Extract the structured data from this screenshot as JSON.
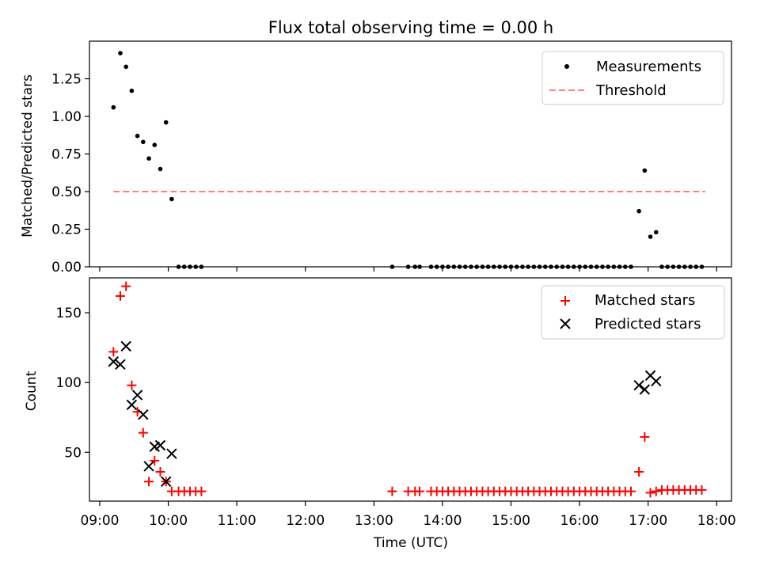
{
  "chart_data": [
    {
      "type": "scatter",
      "title": "Flux total observing time = 0.00 h",
      "xlabel": "",
      "ylabel": "Matched/Predicted stars",
      "xlim": [
        "08:51",
        "18:13"
      ],
      "ylim": [
        0.0,
        1.5
      ],
      "yticks": [
        0.0,
        0.25,
        0.5,
        0.75,
        1.0,
        1.25
      ],
      "ytick_labels": [
        "0.00",
        "0.25",
        "0.50",
        "0.75",
        "1.00",
        "1.25"
      ],
      "legend": {
        "placement": "top-right",
        "entries": [
          "Measurements",
          "Threshold"
        ]
      },
      "threshold": {
        "name": "Threshold",
        "y": 0.5,
        "x_start": "09:12",
        "x_end": "17:50",
        "color": "#ff7f7f"
      },
      "series": [
        {
          "name": "Measurements",
          "color": "#000000",
          "marker": "dot",
          "points": [
            [
              "09:12",
              1.06
            ],
            [
              "09:18",
              1.42
            ],
            [
              "09:23",
              1.33
            ],
            [
              "09:28",
              1.17
            ],
            [
              "09:33",
              0.87
            ],
            [
              "09:38",
              0.83
            ],
            [
              "09:43",
              0.72
            ],
            [
              "09:48",
              0.81
            ],
            [
              "09:53",
              0.65
            ],
            [
              "09:58",
              0.96
            ],
            [
              "10:03",
              0.45
            ],
            [
              "10:09",
              0.0
            ],
            [
              "10:14",
              0.0
            ],
            [
              "10:19",
              0.0
            ],
            [
              "10:24",
              0.0
            ],
            [
              "10:29",
              0.0
            ],
            [
              "13:16",
              0.0
            ],
            [
              "13:30",
              0.0
            ],
            [
              "13:36",
              0.0
            ],
            [
              "13:40",
              0.0
            ],
            [
              "13:50",
              0.0
            ],
            [
              "13:55",
              0.0
            ],
            [
              "14:00",
              0.0
            ],
            [
              "14:05",
              0.0
            ],
            [
              "14:10",
              0.0
            ],
            [
              "14:15",
              0.0
            ],
            [
              "14:20",
              0.0
            ],
            [
              "14:25",
              0.0
            ],
            [
              "14:30",
              0.0
            ],
            [
              "14:35",
              0.0
            ],
            [
              "14:40",
              0.0
            ],
            [
              "14:45",
              0.0
            ],
            [
              "14:50",
              0.0
            ],
            [
              "14:55",
              0.0
            ],
            [
              "15:00",
              0.0
            ],
            [
              "15:05",
              0.0
            ],
            [
              "15:10",
              0.0
            ],
            [
              "15:15",
              0.0
            ],
            [
              "15:20",
              0.0
            ],
            [
              "15:25",
              0.0
            ],
            [
              "15:30",
              0.0
            ],
            [
              "15:35",
              0.0
            ],
            [
              "15:40",
              0.0
            ],
            [
              "15:45",
              0.0
            ],
            [
              "15:50",
              0.0
            ],
            [
              "15:55",
              0.0
            ],
            [
              "16:00",
              0.0
            ],
            [
              "16:05",
              0.0
            ],
            [
              "16:10",
              0.0
            ],
            [
              "16:15",
              0.0
            ],
            [
              "16:20",
              0.0
            ],
            [
              "16:25",
              0.0
            ],
            [
              "16:30",
              0.0
            ],
            [
              "16:35",
              0.0
            ],
            [
              "16:40",
              0.0
            ],
            [
              "16:45",
              0.0
            ],
            [
              "16:52",
              0.37
            ],
            [
              "16:57",
              0.64
            ],
            [
              "17:02",
              0.2
            ],
            [
              "17:07",
              0.23
            ],
            [
              "17:12",
              0.0
            ],
            [
              "17:17",
              0.0
            ],
            [
              "17:22",
              0.0
            ],
            [
              "17:27",
              0.0
            ],
            [
              "17:32",
              0.0
            ],
            [
              "17:37",
              0.0
            ],
            [
              "17:42",
              0.0
            ],
            [
              "17:47",
              0.0
            ]
          ]
        }
      ]
    },
    {
      "type": "scatter",
      "title": "",
      "xlabel": "Time (UTC)",
      "ylabel": "Count",
      "xlim": [
        "08:51",
        "18:13"
      ],
      "ylim": [
        15,
        175
      ],
      "yticks": [
        50,
        100,
        150
      ],
      "ytick_labels": [
        "50",
        "100",
        "150"
      ],
      "xticks": [
        "09:00",
        "10:00",
        "11:00",
        "12:00",
        "13:00",
        "14:00",
        "15:00",
        "16:00",
        "17:00",
        "18:00"
      ],
      "xtick_labels": [
        "09:00",
        "10:00",
        "11:00",
        "12:00",
        "13:00",
        "14:00",
        "15:00",
        "16:00",
        "17:00",
        "18:00"
      ],
      "legend": {
        "placement": "top-right",
        "entries": [
          "Matched stars",
          "Predicted stars"
        ]
      },
      "series": [
        {
          "name": "Matched stars",
          "color": "#ff0000",
          "marker": "plus",
          "points": [
            [
              "09:12",
              122
            ],
            [
              "09:18",
              162
            ],
            [
              "09:23",
              169
            ],
            [
              "09:28",
              98
            ],
            [
              "09:33",
              79
            ],
            [
              "09:38",
              64
            ],
            [
              "09:43",
              29
            ],
            [
              "09:48",
              44
            ],
            [
              "09:53",
              36
            ],
            [
              "09:58",
              29
            ],
            [
              "10:03",
              22
            ],
            [
              "10:09",
              22
            ],
            [
              "10:14",
              22
            ],
            [
              "10:19",
              22
            ],
            [
              "10:24",
              22
            ],
            [
              "10:29",
              22
            ],
            [
              "13:16",
              22
            ],
            [
              "13:30",
              22
            ],
            [
              "13:36",
              22
            ],
            [
              "13:40",
              22
            ],
            [
              "13:50",
              22
            ],
            [
              "13:55",
              22
            ],
            [
              "14:00",
              22
            ],
            [
              "14:05",
              22
            ],
            [
              "14:10",
              22
            ],
            [
              "14:15",
              22
            ],
            [
              "14:20",
              22
            ],
            [
              "14:25",
              22
            ],
            [
              "14:30",
              22
            ],
            [
              "14:35",
              22
            ],
            [
              "14:40",
              22
            ],
            [
              "14:45",
              22
            ],
            [
              "14:50",
              22
            ],
            [
              "14:55",
              22
            ],
            [
              "15:00",
              22
            ],
            [
              "15:05",
              22
            ],
            [
              "15:10",
              22
            ],
            [
              "15:15",
              22
            ],
            [
              "15:20",
              22
            ],
            [
              "15:25",
              22
            ],
            [
              "15:30",
              22
            ],
            [
              "15:35",
              22
            ],
            [
              "15:40",
              22
            ],
            [
              "15:45",
              22
            ],
            [
              "15:50",
              22
            ],
            [
              "15:55",
              22
            ],
            [
              "16:00",
              22
            ],
            [
              "16:05",
              22
            ],
            [
              "16:10",
              22
            ],
            [
              "16:15",
              22
            ],
            [
              "16:20",
              22
            ],
            [
              "16:25",
              22
            ],
            [
              "16:30",
              22
            ],
            [
              "16:35",
              22
            ],
            [
              "16:40",
              22
            ],
            [
              "16:45",
              22
            ],
            [
              "16:52",
              36
            ],
            [
              "16:57",
              61
            ],
            [
              "17:02",
              21
            ],
            [
              "17:07",
              22
            ],
            [
              "17:12",
              23
            ],
            [
              "17:17",
              23
            ],
            [
              "17:22",
              23
            ],
            [
              "17:27",
              23
            ],
            [
              "17:32",
              23
            ],
            [
              "17:37",
              23
            ],
            [
              "17:42",
              23
            ],
            [
              "17:47",
              23
            ]
          ]
        },
        {
          "name": "Predicted stars",
          "color": "#000000",
          "marker": "x",
          "points": [
            [
              "09:12",
              115
            ],
            [
              "09:18",
              113
            ],
            [
              "09:23",
              126
            ],
            [
              "09:28",
              84
            ],
            [
              "09:33",
              91
            ],
            [
              "09:38",
              77
            ],
            [
              "09:43",
              40
            ],
            [
              "09:48",
              54
            ],
            [
              "09:53",
              55
            ],
            [
              "09:58",
              29
            ],
            [
              "10:03",
              49
            ],
            [
              "16:52",
              98
            ],
            [
              "16:57",
              95
            ],
            [
              "17:02",
              105
            ],
            [
              "17:07",
              101
            ]
          ]
        }
      ]
    }
  ]
}
